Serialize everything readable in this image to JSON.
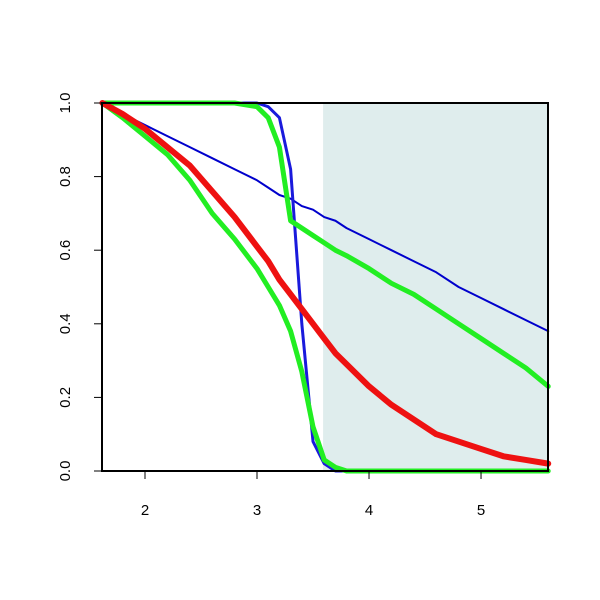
{
  "chart_data": {
    "type": "line",
    "x": [
      1.62,
      1.8,
      2.0,
      2.2,
      2.4,
      2.6,
      2.8,
      3.0,
      3.1,
      3.2,
      3.3,
      3.4,
      3.5,
      3.6,
      3.7,
      3.8,
      4.0,
      4.2,
      4.4,
      4.6,
      4.8,
      5.0,
      5.2,
      5.4,
      5.6
    ],
    "series": [
      {
        "color": "#0000cc",
        "width": 2,
        "values": [
          1.0,
          0.97,
          0.94,
          0.91,
          0.88,
          0.85,
          0.82,
          0.79,
          0.77,
          0.75,
          0.74,
          0.72,
          0.71,
          0.69,
          0.68,
          0.66,
          0.63,
          0.6,
          0.57,
          0.54,
          0.5,
          0.47,
          0.44,
          0.41,
          0.38
        ]
      },
      {
        "color": "#1a1adc",
        "width": 3,
        "values": [
          1.0,
          1.0,
          1.0,
          1.0,
          1.0,
          1.0,
          1.0,
          1.0,
          0.99,
          0.96,
          0.82,
          0.4,
          0.08,
          0.02,
          0.0,
          0.0,
          0.0,
          0.0,
          0.0,
          0.0,
          0.0,
          0.0,
          0.0,
          0.0,
          0.0
        ]
      },
      {
        "color": "#22ee22",
        "width": 5,
        "values": [
          1.0,
          1.0,
          1.0,
          1.0,
          1.0,
          1.0,
          1.0,
          0.99,
          0.96,
          0.88,
          0.68,
          0.66,
          0.64,
          0.62,
          0.6,
          0.585,
          0.55,
          0.51,
          0.48,
          0.44,
          0.4,
          0.36,
          0.32,
          0.28,
          0.23
        ]
      },
      {
        "color": "#22ee22",
        "width": 5,
        "values": [
          1.0,
          0.96,
          0.91,
          0.86,
          0.79,
          0.7,
          0.63,
          0.55,
          0.5,
          0.45,
          0.38,
          0.27,
          0.12,
          0.03,
          0.01,
          0.0,
          0.0,
          0.0,
          0.0,
          0.0,
          0.0,
          0.0,
          0.0,
          0.0,
          0.0
        ]
      },
      {
        "color": "#ee1111",
        "width": 6,
        "values": [
          1.0,
          0.97,
          0.93,
          0.88,
          0.83,
          0.76,
          0.69,
          0.61,
          0.57,
          0.52,
          0.48,
          0.44,
          0.4,
          0.36,
          0.32,
          0.29,
          0.23,
          0.18,
          0.14,
          0.1,
          0.08,
          0.06,
          0.04,
          0.03,
          0.02
        ]
      }
    ],
    "shaded_xrange": [
      3.59,
      5.6
    ],
    "shade_color": "#dfeded",
    "xlim": [
      1.616,
      5.598
    ],
    "ylim": [
      0,
      1
    ],
    "xticks": [
      2,
      3,
      4,
      5
    ],
    "yticks": [
      {
        "value": 0,
        "label": "0.0"
      },
      0.2,
      0.4,
      0.6,
      0.8,
      {
        "value": 1,
        "label": "1.0"
      }
    ],
    "grid": false
  }
}
